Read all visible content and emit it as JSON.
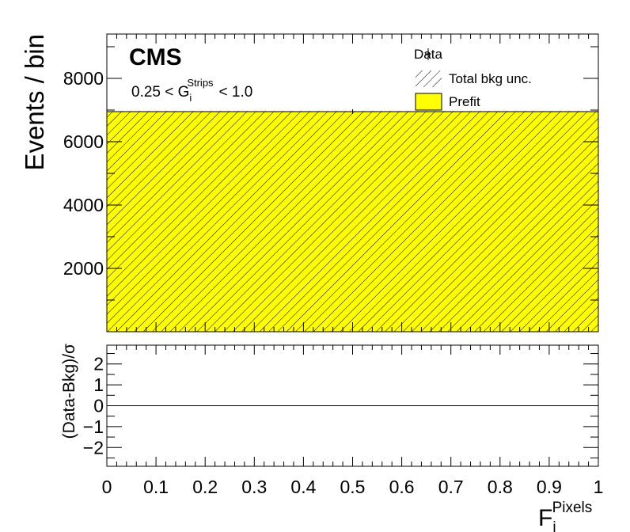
{
  "chart_data": [
    {
      "type": "bar",
      "panel": "main",
      "experiment_label": "CMS",
      "selection_label": {
        "prefix": "0.25 < G",
        "sub": "i",
        "sup": "Strips",
        "suffix": "< 1.0"
      },
      "ylabel": "Events / bin",
      "xlim": [
        0,
        1
      ],
      "ylim": [
        0,
        9400
      ],
      "yticks": [
        2000,
        4000,
        6000,
        8000
      ],
      "series": [
        {
          "name": "Prefit",
          "color": "#ffff00",
          "bins": [
            {
              "x": [
                0,
                1
              ],
              "value": 6950
            }
          ]
        },
        {
          "name": "Total bkg unc.",
          "style": "hatched",
          "bins": [
            {
              "x": [
                0,
                1
              ],
              "low": 6930,
              "high": 6970
            }
          ]
        },
        {
          "name": "Data",
          "style": "points",
          "points": [
            {
              "x": 0.5,
              "value": 6950
            }
          ]
        }
      ],
      "legend": [
        "Data",
        "Total bkg unc.",
        "Prefit"
      ],
      "legend_position": "top-right"
    },
    {
      "type": "line",
      "panel": "ratio",
      "ylabel": "(Data-Bkg)/σ",
      "xlabel": {
        "base": "F",
        "sub": "i",
        "sup": "Pixels"
      },
      "xlim": [
        0,
        1
      ],
      "ylim": [
        -2.9,
        2.9
      ],
      "yticks": [
        -2,
        -1,
        0,
        1,
        2
      ],
      "xticks": [
        0,
        0.1,
        0.2,
        0.3,
        0.4,
        0.5,
        0.6,
        0.7,
        0.8,
        0.9,
        1
      ],
      "xtick_labels": [
        "0",
        "0.1",
        "0.2",
        "0.3",
        "0.4",
        "0.5",
        "0.6",
        "0.7",
        "0.8",
        "0.9",
        "1"
      ],
      "reference_line": 0
    }
  ]
}
